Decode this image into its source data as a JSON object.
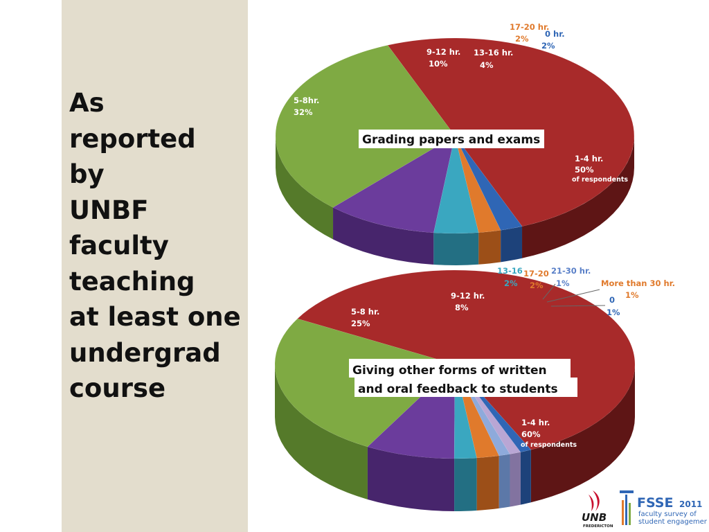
{
  "side_text_lines": [
    "As",
    "reported",
    "by",
    "UNBF",
    "faculty",
    "teaching",
    "at least one",
    "undergrad",
    "course"
  ],
  "colors": {
    "red": "#a82a2a",
    "red_side": "#5e1515",
    "green": "#7faa43",
    "green_side": "#557a2a",
    "purple": "#6b3c9c",
    "purple_side": "#47256c",
    "teal": "#3aa7c0",
    "teal_side": "#236f83",
    "orange": "#e07a2c",
    "orange_side": "#9c4f18",
    "blue": "#2f66b5",
    "blue_side": "#1d427a",
    "lightblue": "#8eaadb",
    "lightblue_side": "#5c78a8",
    "lavender": "#b9a6d4",
    "lavender_side": "#8273a0",
    "panel": "#e3ddcd"
  },
  "chart_data": [
    {
      "type": "pie",
      "title": "Grading papers and exams",
      "slices": [
        {
          "label": "1-4 hr.",
          "value": 50,
          "value_text": "50%",
          "note": "of respondents",
          "color": "red"
        },
        {
          "label": "5-8hr.",
          "value": 32,
          "value_text": "32%",
          "color": "green"
        },
        {
          "label": "9-12 hr.",
          "value": 10,
          "value_text": "10%",
          "color": "purple"
        },
        {
          "label": "13-16 hr.",
          "value": 4,
          "value_text": "4%",
          "color": "teal"
        },
        {
          "label": "17-20 hr.",
          "value": 2,
          "value_text": "2%",
          "color": "orange"
        },
        {
          "label": "0 hr.",
          "value": 2,
          "value_text": "2%",
          "color": "blue"
        }
      ]
    },
    {
      "type": "pie",
      "title": "Giving other forms of written and oral feedback to students",
      "title_lines": [
        "Giving other forms of written",
        "and oral feedback to students"
      ],
      "slices": [
        {
          "label": "1-4 hr.",
          "value": 60,
          "value_text": "60%",
          "note": "of respondents",
          "color": "red"
        },
        {
          "label": "5-8 hr.",
          "value": 25,
          "value_text": "25%",
          "color": "green"
        },
        {
          "label": "9-12 hr.",
          "value": 8,
          "value_text": "8%",
          "color": "purple"
        },
        {
          "label": "13-16",
          "value": 2,
          "value_text": "2%",
          "color": "teal"
        },
        {
          "label": "17-20",
          "value": 2,
          "value_text": "2%",
          "color": "orange"
        },
        {
          "label": "21-30 hr.",
          "value": 1,
          "value_text": "1%",
          "color": "lightblue"
        },
        {
          "label": "More than 30 hr.",
          "value": 1,
          "value_text": "1%",
          "color": "lavender"
        },
        {
          "label": "0",
          "value": 1,
          "value_text": "1%",
          "color": "blue"
        }
      ]
    }
  ],
  "logos": {
    "unb_main": "UNB",
    "unb_sub": "FREDERICTON",
    "fsse_name": "FSSE",
    "fsse_year": "2011",
    "fsse_line1": "faculty survey of",
    "fsse_line2": "student engagement"
  }
}
